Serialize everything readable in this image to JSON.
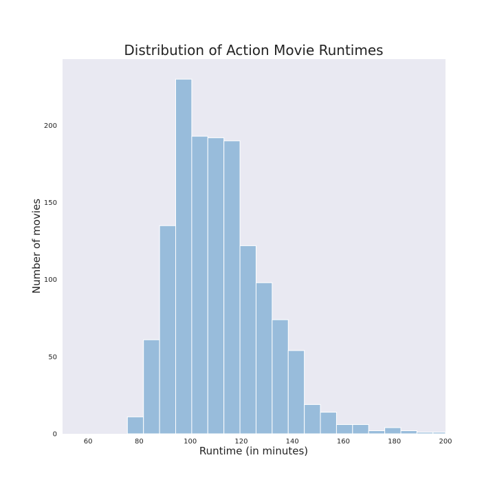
{
  "chart_data": {
    "type": "bar",
    "title": "Distribution of Action Movie Runtimes",
    "xlabel": "Runtime (in minutes)",
    "ylabel": "Number of movies",
    "xlim": [
      50,
      200
    ],
    "ylim": [
      0,
      243
    ],
    "xticks": [
      60,
      80,
      100,
      120,
      140,
      160,
      180,
      200
    ],
    "yticks": [
      0,
      50,
      100,
      150,
      200
    ],
    "grid": false,
    "bar_color": "#98bcdb",
    "plot_background": "#e9e9f2",
    "bin_edges": [
      75.4,
      81.7,
      88.0,
      94.3,
      100.6,
      106.9,
      113.2,
      119.5,
      125.8,
      132.1,
      138.4,
      144.7,
      151.0,
      157.3,
      163.6,
      169.9,
      176.2,
      182.5,
      188.8,
      195.1,
      201.4
    ],
    "values": [
      11,
      61,
      135,
      230,
      193,
      192,
      190,
      122,
      98,
      74,
      54,
      19,
      14,
      6,
      6,
      2,
      4,
      2,
      1,
      1
    ]
  }
}
